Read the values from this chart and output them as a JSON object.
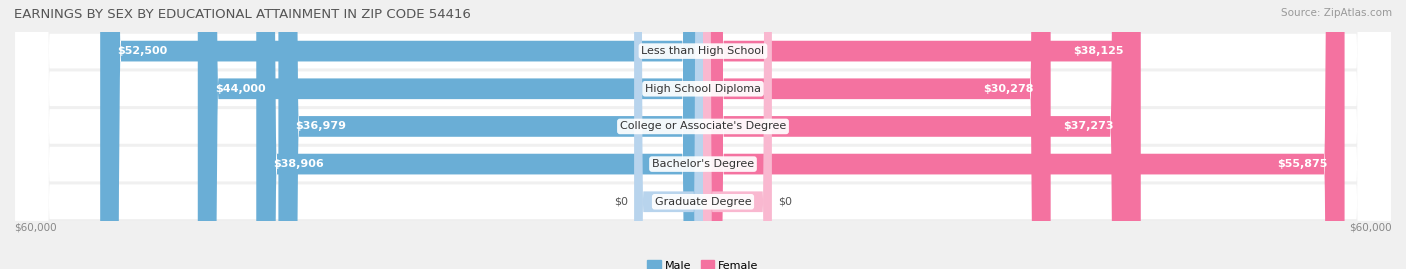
{
  "title": "EARNINGS BY SEX BY EDUCATIONAL ATTAINMENT IN ZIP CODE 54416",
  "source": "Source: ZipAtlas.com",
  "categories": [
    "Less than High School",
    "High School Diploma",
    "College or Associate's Degree",
    "Bachelor's Degree",
    "Graduate Degree"
  ],
  "male_values": [
    52500,
    44000,
    36979,
    38906,
    0
  ],
  "female_values": [
    38125,
    30278,
    37273,
    55875,
    0
  ],
  "male_labels": [
    "$52,500",
    "$44,000",
    "$36,979",
    "$38,906",
    "$0"
  ],
  "female_labels": [
    "$38,125",
    "$30,278",
    "$37,273",
    "$55,875",
    "$0"
  ],
  "male_color": "#6aaed6",
  "female_color": "#f472a0",
  "male_color_zero": "#b8d4ed",
  "female_color_zero": "#f9b8d0",
  "row_bg_even": "#ebebeb",
  "row_bg_odd": "#f5f5f5",
  "bg_color": "#f0f0f0",
  "max_value": 60000,
  "xlabel_left": "$60,000",
  "xlabel_right": "$60,000",
  "title_fontsize": 9.5,
  "label_fontsize": 8,
  "category_fontsize": 8,
  "source_fontsize": 7.5
}
